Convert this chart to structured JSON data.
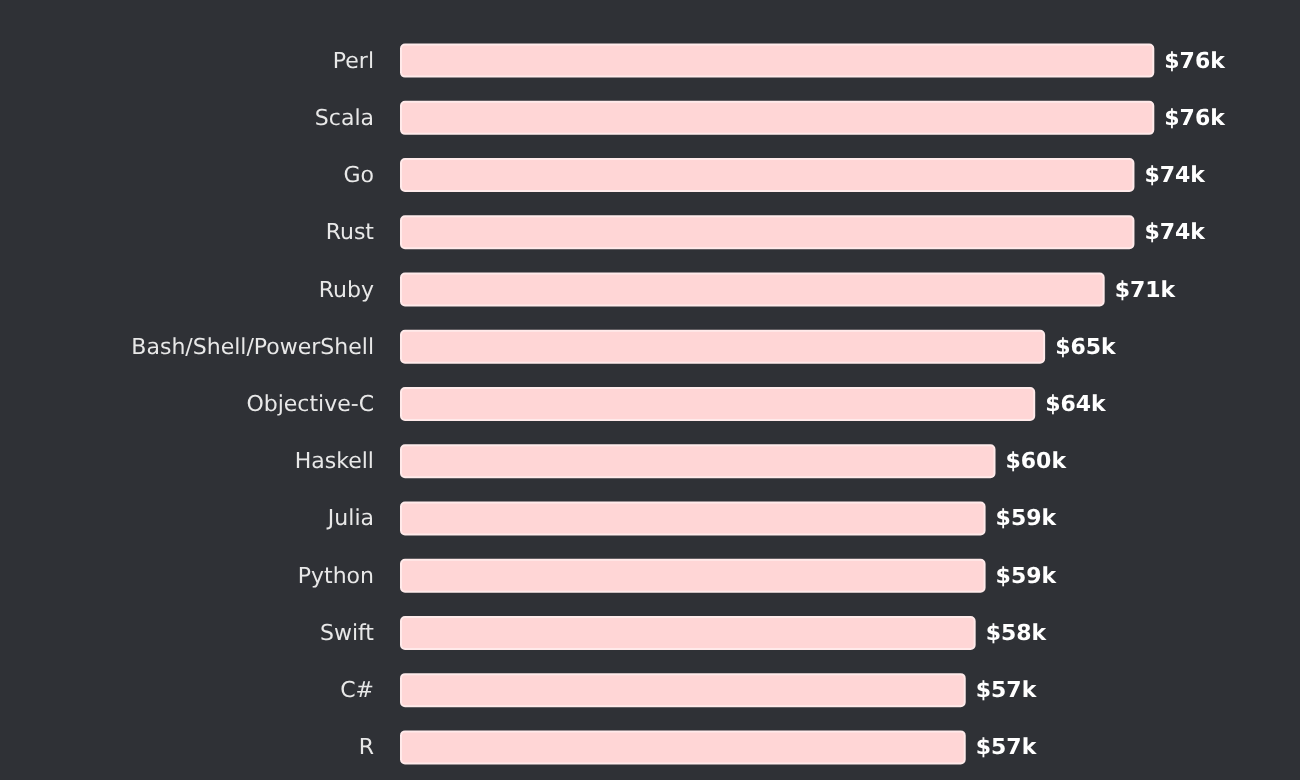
{
  "chart_data": {
    "type": "bar",
    "orientation": "horizontal",
    "categories": [
      "Perl",
      "Scala",
      "Go",
      "Rust",
      "Ruby",
      "Bash/Shell/PowerShell",
      "Objective-C",
      "Haskell",
      "Julia",
      "Python",
      "Swift",
      "C#",
      "R"
    ],
    "values": [
      76,
      76,
      74,
      74,
      71,
      65,
      64,
      60,
      59,
      59,
      58,
      57,
      57
    ],
    "value_labels": [
      "$76k",
      "$76k",
      "$74k",
      "$74k",
      "$71k",
      "$65k",
      "$64k",
      "$60k",
      "$59k",
      "$59k",
      "$58k",
      "$57k",
      "$57k"
    ],
    "color": "#ffd6d6",
    "grid": false,
    "tick_labels": "y"
  }
}
